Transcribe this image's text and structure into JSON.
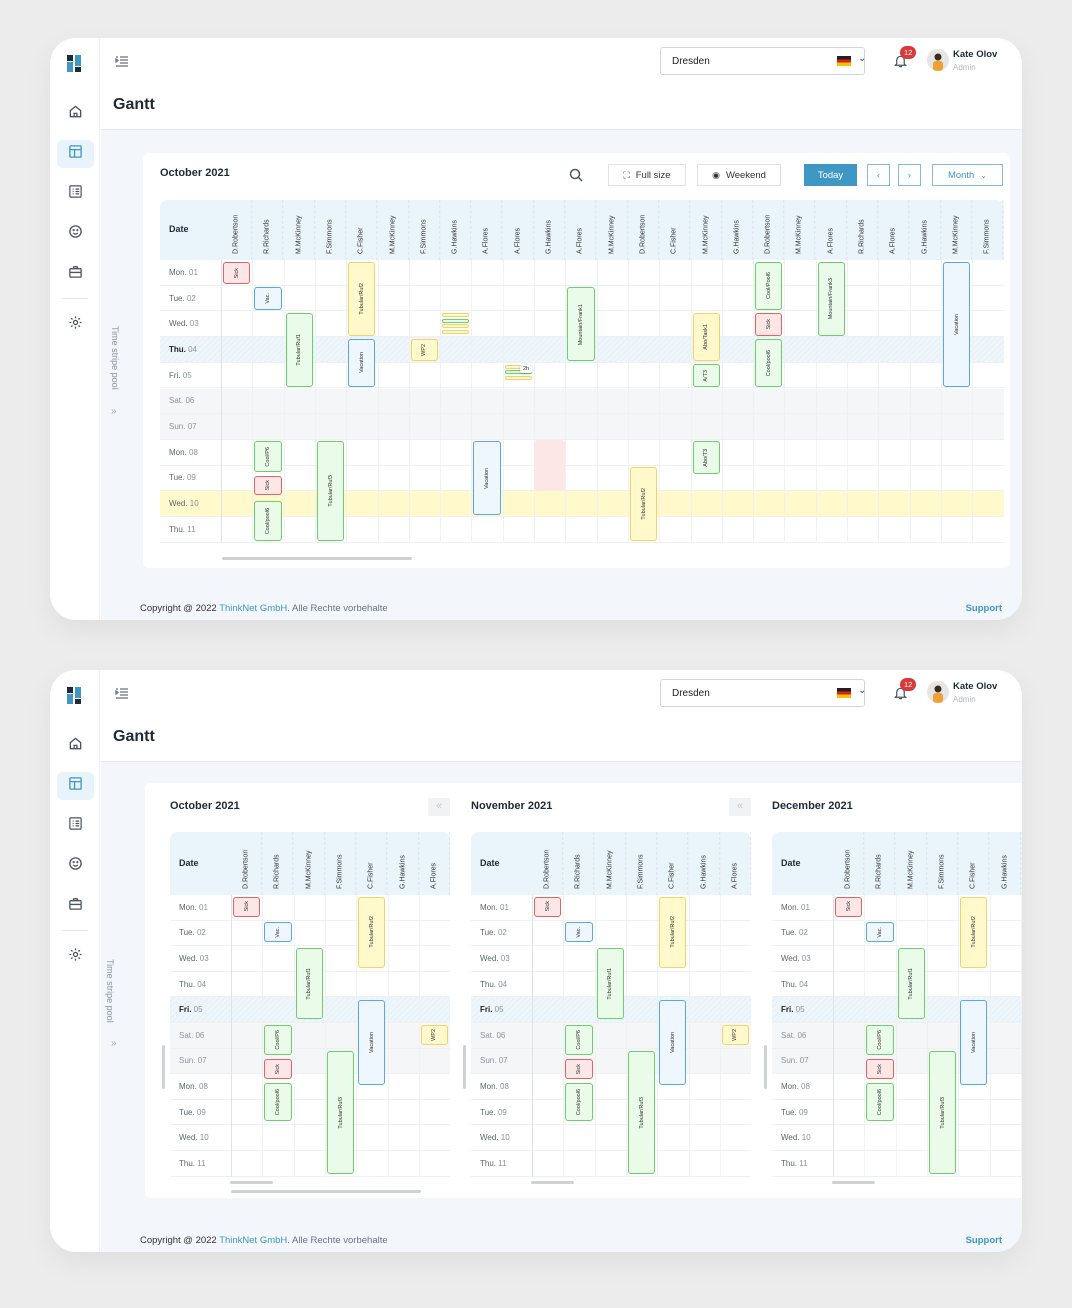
{
  "header": {
    "location": "Dresden",
    "language_flag": "de-flag-icon",
    "notifications": "12",
    "user_name": "Kate Olov",
    "user_role": "Admin"
  },
  "page_title": "Gantt",
  "pool_label": "Time stripe pool",
  "toolbar": {
    "full_size": "Full size",
    "weekend": "Weekend",
    "today": "Today",
    "prev": "‹",
    "next": "›",
    "view": "Month"
  },
  "footer": {
    "copyright": "Copyright @ 2022 ",
    "company": "ThinkNet GmbH.",
    "rights": " Alle Rechte vorbehalte",
    "support": "Support"
  },
  "colors": {
    "accent": "#3f97c4",
    "sick": "#e06464",
    "vacation": "#5aa6e6",
    "task_green": "#6ccf6c",
    "task_yellow": "#f2d36b"
  },
  "sidebar": [
    "logo",
    "home-icon",
    "layout-icon",
    "list-icon",
    "smiley-icon",
    "briefcase-icon",
    "gear-icon"
  ],
  "top": {
    "title": "October 2021",
    "date_header": "Date",
    "columns": [
      "D.Robertson",
      "R.Richards",
      "M.McKinney",
      "F.Simmons",
      "C.Fisher",
      "M.McKinney",
      "F.Simmons",
      "G.Hawkins",
      "A.Flores",
      "A.Flores",
      "G.Hawkins",
      "A.Flores",
      "M.McKinney",
      "D.Robertson",
      "C.Fisher",
      "M.McKinney",
      "G.Hawkins",
      "D.Robertson",
      "M.McKinney",
      "A.Flores",
      "R.Richards",
      "A.Flores",
      "G.Hawkins",
      "M.McKinney",
      "F.Simmons"
    ],
    "rows": [
      {
        "d": "Mon.",
        "n": "01",
        "s": ""
      },
      {
        "d": "Tue.",
        "n": "02",
        "s": ""
      },
      {
        "d": "Wed.",
        "n": "03",
        "s": ""
      },
      {
        "d": "Thu.",
        "n": "04",
        "s": "today"
      },
      {
        "d": "Fri.",
        "n": "05",
        "s": ""
      },
      {
        "d": "Sat.",
        "n": "06",
        "s": "weekend"
      },
      {
        "d": "Sun.",
        "n": "07",
        "s": "weekend"
      },
      {
        "d": "Mon.",
        "n": "08",
        "s": ""
      },
      {
        "d": "Tue.",
        "n": "09",
        "s": ""
      },
      {
        "d": "Wed.",
        "n": "10",
        "s": "hl"
      },
      {
        "d": "Thu.",
        "n": "11",
        "s": ""
      }
    ],
    "bars": [
      {
        "col": 0,
        "start": 0,
        "end": 1,
        "type": "sick",
        "label": "Sick"
      },
      {
        "col": 1,
        "start": 1,
        "end": 2,
        "type": "vacation",
        "label": "Vac."
      },
      {
        "col": 2,
        "start": 2,
        "end": 5,
        "type": "green",
        "label": "Tubular/Ruf1"
      },
      {
        "col": 4,
        "start": 0,
        "end": 3,
        "type": "yellow",
        "label": "Tubular/Ruf2"
      },
      {
        "col": 4,
        "start": 3,
        "end": 5,
        "type": "vacation",
        "label": "Vacation"
      },
      {
        "col": 6,
        "start": 3,
        "end": 4,
        "type": "yellow",
        "label": "WP2"
      },
      {
        "col": 11,
        "start": 1,
        "end": 4,
        "type": "green",
        "label": "Mountain/Frank1"
      },
      {
        "col": 15,
        "start": 2,
        "end": 4,
        "type": "yellow",
        "label": "Abo/Task1"
      },
      {
        "col": 15,
        "start": 4,
        "end": 5,
        "type": "green",
        "label": "A/T3"
      },
      {
        "col": 17,
        "start": 0,
        "end": 2,
        "type": "green",
        "label": "Cool/Pool6"
      },
      {
        "col": 17,
        "start": 2,
        "end": 3,
        "type": "sick",
        "label": "Sick"
      },
      {
        "col": 17,
        "start": 3,
        "end": 5,
        "type": "green",
        "label": "Cool/pool6"
      },
      {
        "col": 19,
        "start": 0,
        "end": 3,
        "type": "green",
        "label": "Mountain/Frank3"
      },
      {
        "col": 23,
        "start": 0,
        "end": 5,
        "type": "vacation",
        "label": "Vacation"
      },
      {
        "col": 1,
        "start": 7,
        "end": 8.3,
        "type": "green",
        "label": "Cool/P6"
      },
      {
        "col": 1,
        "start": 8.35,
        "end": 9.2,
        "type": "sick",
        "label": "Sick"
      },
      {
        "col": 1,
        "start": 9.3,
        "end": 11,
        "type": "green",
        "label": "Cool/pool6"
      },
      {
        "col": 3,
        "start": 7,
        "end": 11,
        "type": "green",
        "label": "Tubular/Ruf3"
      },
      {
        "col": 8,
        "start": 7,
        "end": 10,
        "type": "vacation",
        "label": "Vacation"
      },
      {
        "col": 10,
        "start": 7,
        "end": 9,
        "type": "blocked",
        "label": ""
      },
      {
        "col": 13,
        "start": 8,
        "end": 11,
        "type": "yellow",
        "label": "Tubular/Ruf2"
      },
      {
        "col": 15,
        "start": 7,
        "end": 8.4,
        "type": "green",
        "label": "Abo/T3"
      }
    ],
    "stacks": [
      {
        "col": 7,
        "row": 2,
        "types": [
          "yellow",
          "green",
          "yellow",
          "yellow"
        ]
      },
      {
        "col": 9,
        "row": 4,
        "types": [
          "yellow",
          "green",
          "yellow"
        ],
        "tooltip": "2h"
      }
    ]
  },
  "bottom": {
    "date_header": "Date",
    "months": [
      {
        "title": "October 2021"
      },
      {
        "title": "November 2021"
      },
      {
        "title": "December 2021"
      }
    ],
    "collapse": "«",
    "columns": [
      "D.Robertson",
      "R.Richards",
      "M.McKinney",
      "F.Simmons",
      "C.Fisher",
      "G.Hawkins",
      "A.Flores"
    ],
    "rows": [
      {
        "d": "Mon.",
        "n": "01",
        "s": ""
      },
      {
        "d": "Tue.",
        "n": "02",
        "s": ""
      },
      {
        "d": "Wed.",
        "n": "03",
        "s": ""
      },
      {
        "d": "Thu.",
        "n": "04",
        "s": ""
      },
      {
        "d": "Fri.",
        "n": "05",
        "s": "today"
      },
      {
        "d": "Sat.",
        "n": "06",
        "s": "weekend"
      },
      {
        "d": "Sun.",
        "n": "07",
        "s": "weekend"
      },
      {
        "d": "Mon.",
        "n": "08",
        "s": ""
      },
      {
        "d": "Tue.",
        "n": "09",
        "s": ""
      },
      {
        "d": "Wed.",
        "n": "10",
        "s": ""
      },
      {
        "d": "Thu.",
        "n": "11",
        "s": ""
      }
    ],
    "bars": [
      {
        "col": 0,
        "start": 0,
        "end": 0.9,
        "type": "sick",
        "label": "Sick"
      },
      {
        "col": 1,
        "start": 1,
        "end": 1.9,
        "type": "vacation",
        "label": "Vac."
      },
      {
        "col": 2,
        "start": 2,
        "end": 4.9,
        "type": "green",
        "label": "Tubular/Ruf1"
      },
      {
        "col": 4,
        "start": 0,
        "end": 2.9,
        "type": "yellow",
        "label": "Tubular/Ruf2"
      },
      {
        "col": 4,
        "start": 4.05,
        "end": 7.5,
        "type": "vacation",
        "label": "Vacation"
      },
      {
        "col": 6,
        "start": 5,
        "end": 5.9,
        "type": "yellow",
        "label": "WP2"
      },
      {
        "col": 1,
        "start": 5,
        "end": 6.3,
        "type": "green",
        "label": "Cool/P6"
      },
      {
        "col": 1,
        "start": 6.35,
        "end": 7.25,
        "type": "sick",
        "label": "Sick"
      },
      {
        "col": 1,
        "start": 7.3,
        "end": 8.9,
        "type": "green",
        "label": "Cool/pool6"
      },
      {
        "col": 3,
        "start": 6.05,
        "end": 10.95,
        "type": "green",
        "label": "Tubular/Ruf3"
      }
    ]
  }
}
